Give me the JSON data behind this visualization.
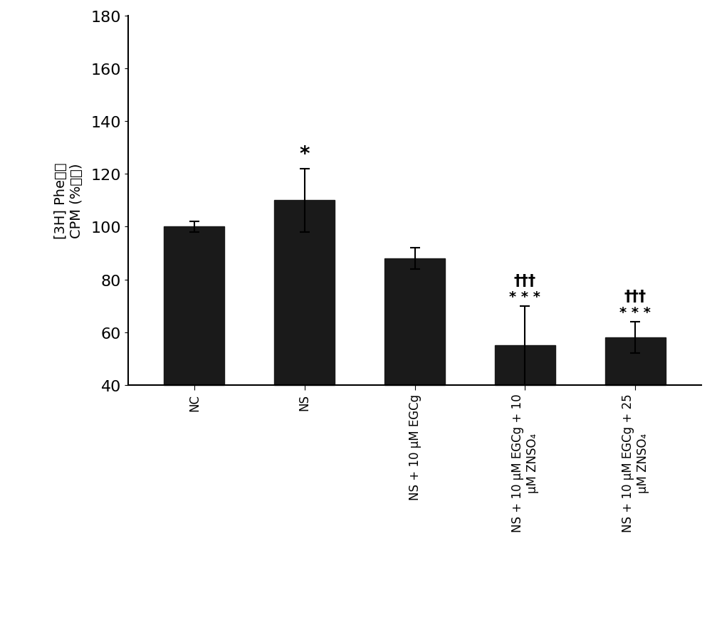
{
  "values": [
    100,
    110,
    88,
    55,
    58
  ],
  "errors": [
    2,
    12,
    4,
    15,
    6
  ],
  "bar_color": "#1a1a1a",
  "ylabel_line1": "[3H] Phe释放",
  "ylabel_line2": "CPM (%对照)",
  "ylim": [
    40,
    180
  ],
  "yticks": [
    40,
    60,
    80,
    100,
    120,
    140,
    160,
    180
  ],
  "background_color": "#ffffff",
  "bar_width": 0.55,
  "ns_star": "*",
  "dagger3": "†††",
  "stars3": "* * *",
  "dagger4": "†††",
  "stars4": "* * *",
  "xlabels": [
    "NC",
    "NS",
    "NS + 10 μM EGCg",
    "NS + 10 μM EGCg + 10\nμM ZNSO₄",
    "NS + 10 μM EGCg + 25\nμM ZNSO₄"
  ]
}
